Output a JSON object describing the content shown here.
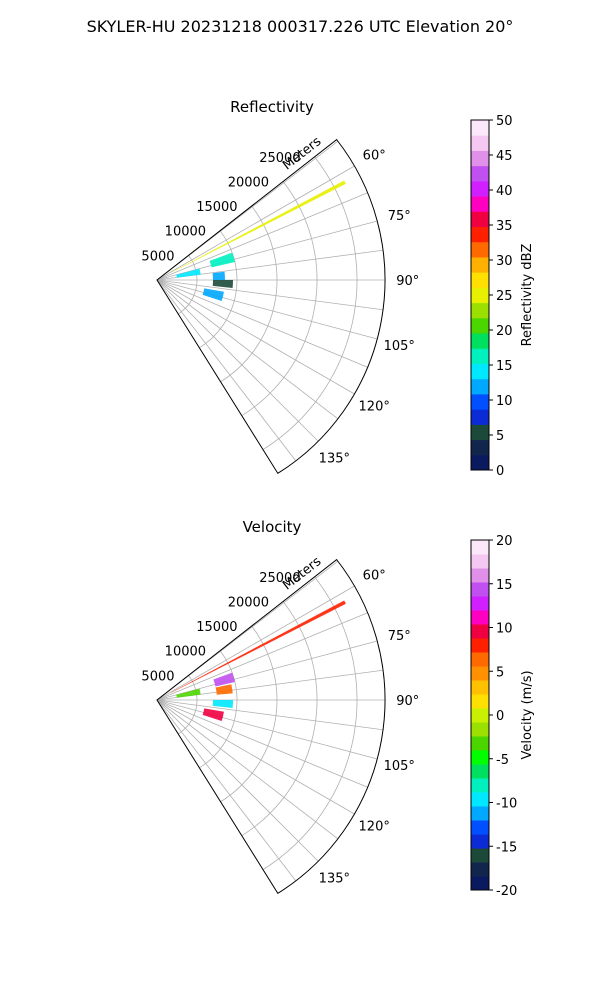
{
  "figure": {
    "suptitle": "SKYLER-HU  20231218  000317.226 UTC Elevation 20°"
  },
  "chart_data": [
    {
      "type": "ppi-sector",
      "title": "Reflectivity",
      "range_label": "Meters",
      "range_ticks": [
        "5000",
        "10000",
        "15000",
        "20000",
        "25000"
      ],
      "range_tick_values": [
        5000,
        10000,
        15000,
        20000,
        25000
      ],
      "range_max_m": 28500,
      "azimuth_span_deg": [
        52,
        148
      ],
      "azimuth_ticks": [
        "60°",
        "75°",
        "90°",
        "105°",
        "120°",
        "135°"
      ],
      "azimuth_tick_values": [
        60,
        75,
        90,
        105,
        120,
        135
      ],
      "grid": true,
      "colorbar": {
        "label": "Reflectivity dBZ",
        "ticks": [
          "0",
          "5",
          "10",
          "15",
          "20",
          "25",
          "30",
          "35",
          "40",
          "45",
          "50"
        ],
        "tick_values": [
          0,
          5,
          10,
          15,
          20,
          25,
          30,
          35,
          40,
          45,
          50
        ],
        "range": [
          0,
          50
        ],
        "colors": [
          "#0b1a5e",
          "#12264d",
          "#1c4a3a",
          "#0a2bd6",
          "#0050ff",
          "#00a8ff",
          "#00e8ff",
          "#00f0c0",
          "#00e060",
          "#4cd600",
          "#9be000",
          "#e8f000",
          "#ffe000",
          "#ffb000",
          "#ff6a00",
          "#ff2000",
          "#f00040",
          "#ff00c0",
          "#d020ff",
          "#c050f0",
          "#e090e8",
          "#f4c8f0",
          "#fbe8fa"
        ]
      },
      "echo_regions": [
        {
          "az": [
            70,
            77
          ],
          "r": [
            7000,
            10000
          ],
          "value": 17
        },
        {
          "az": [
            83,
            90
          ],
          "r": [
            7000,
            8500
          ],
          "value": 12
        },
        {
          "az": [
            75,
            83
          ],
          "r": [
            2500,
            5500
          ],
          "value": 14
        },
        {
          "az": [
            90,
            96
          ],
          "r": [
            7000,
            9500
          ],
          "value": 6
        },
        {
          "az": [
            100,
            108
          ],
          "r": [
            6000,
            8500
          ],
          "value": 11
        },
        {
          "az": [
            62,
            63
          ],
          "r": [
            2000,
            26500
          ],
          "value": 24
        }
      ]
    },
    {
      "type": "ppi-sector",
      "title": "Velocity",
      "range_label": "Meters",
      "range_ticks": [
        "5000",
        "10000",
        "15000",
        "20000",
        "25000"
      ],
      "range_tick_values": [
        5000,
        10000,
        15000,
        20000,
        25000
      ],
      "range_max_m": 28500,
      "azimuth_span_deg": [
        52,
        148
      ],
      "azimuth_ticks": [
        "60°",
        "75°",
        "90°",
        "105°",
        "120°",
        "135°"
      ],
      "azimuth_tick_values": [
        60,
        75,
        90,
        105,
        120,
        135
      ],
      "grid": true,
      "colorbar": {
        "label": "Velocity (m/s)",
        "ticks": [
          "-20",
          "-15",
          "-10",
          "-5",
          "0",
          "5",
          "10",
          "15",
          "20"
        ],
        "tick_values": [
          -20,
          -15,
          -10,
          -5,
          0,
          5,
          10,
          15,
          20
        ],
        "range": [
          -20,
          20
        ],
        "colors": [
          "#0b1a5e",
          "#12264d",
          "#1c4a3a",
          "#0a2bd6",
          "#0050ff",
          "#00a8ff",
          "#00e8ff",
          "#00f0c0",
          "#00e060",
          "#00ff00",
          "#4cd600",
          "#9be000",
          "#c8f000",
          "#ffe000",
          "#ffc000",
          "#ff9000",
          "#ff6a00",
          "#ff2000",
          "#f00040",
          "#ff00c0",
          "#d020ff",
          "#c050f0",
          "#e090e8",
          "#f4c8f0",
          "#fbe8fa"
        ]
      },
      "echo_regions": [
        {
          "az": [
            70,
            77
          ],
          "r": [
            7500,
            10000
          ],
          "value": 15
        },
        {
          "az": [
            78,
            85
          ],
          "r": [
            7500,
            9500
          ],
          "value": 6
        },
        {
          "az": [
            75,
            83
          ],
          "r": [
            2500,
            5500
          ],
          "value": -4
        },
        {
          "az": [
            90,
            96
          ],
          "r": [
            7000,
            9500
          ],
          "value": -9
        },
        {
          "az": [
            100,
            108
          ],
          "r": [
            6000,
            8500
          ],
          "value": 9
        },
        {
          "az": [
            62,
            63
          ],
          "r": [
            2000,
            26500
          ],
          "value": 8
        }
      ]
    }
  ]
}
